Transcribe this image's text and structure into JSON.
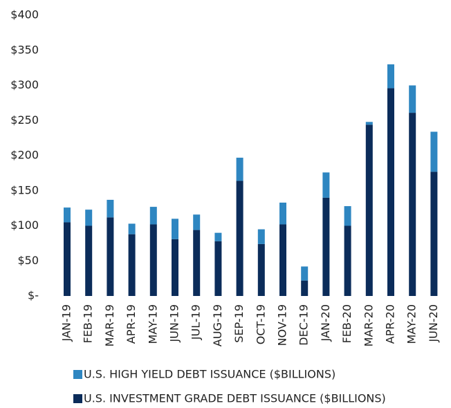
{
  "chart_data": {
    "type": "bar",
    "stacked": true,
    "categories": [
      "JAN-19",
      "FEB-19",
      "MAR-19",
      "APR-19",
      "MAY-19",
      "JUN-19",
      "JUL-19",
      "AUG-19",
      "SEP-19",
      "OCT-19",
      "NOV-19",
      "DEC-19",
      "JAN-20",
      "FEB-20",
      "MAR-20",
      "APR-20",
      "MAY-20",
      "JUN-20"
    ],
    "series": [
      {
        "name": "U.S. HIGH YIELD DEBT ISSUANCE ($BILLIONS)",
        "color": "#2e86c1",
        "values": [
          21,
          23,
          25,
          15,
          25,
          29,
          22,
          12,
          33,
          21,
          31,
          20,
          36,
          28,
          4,
          34,
          39,
          57
        ]
      },
      {
        "name": "U.S. INVESTMENT GRADE DEBT ISSUANCE ($BILLIONS)",
        "color": "#0b2c5a",
        "values": [
          105,
          100,
          112,
          88,
          102,
          81,
          94,
          78,
          164,
          74,
          102,
          22,
          140,
          100,
          244,
          296,
          261,
          177
        ]
      }
    ],
    "ylim": [
      0,
      400
    ],
    "yticks": [
      {
        "value": 0,
        "label": "$-"
      },
      {
        "value": 50,
        "label": "$50"
      },
      {
        "value": 100,
        "label": "$100"
      },
      {
        "value": 150,
        "label": "$150"
      },
      {
        "value": 200,
        "label": "$200"
      },
      {
        "value": 250,
        "label": "$250"
      },
      {
        "value": 300,
        "label": "$300"
      },
      {
        "value": 350,
        "label": "$350"
      },
      {
        "value": 400,
        "label": "$400"
      }
    ],
    "grid": false,
    "legend": "bottom"
  }
}
